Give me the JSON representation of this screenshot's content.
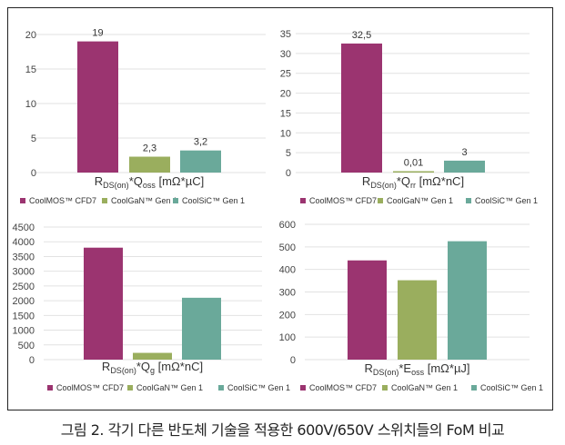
{
  "caption": "그림 2. 각기 다른 반도체 기술을 적용한 600V/650V 스위치들의 FoM 비교",
  "colors": {
    "CoolMOS™ CFD7": "#9b3470",
    "CoolGaN™ Gen 1": "#9aae5e",
    "CoolSiC™ Gen 1": "#6aa99a"
  },
  "chart_data": [
    {
      "type": "bar",
      "title": {
        "r": "R",
        "sub1": "DS(on)",
        "q": "*Q",
        "sub2": "oss",
        "unit": " [mΩ*µC]"
      },
      "categories": [
        "CoolMOS™ CFD7",
        "CoolGaN™ Gen 1",
        "CoolSiC™ Gen 1"
      ],
      "values": [
        19,
        2.3,
        3.2
      ],
      "data_labels": [
        "19",
        "2,3",
        "3,2"
      ],
      "ylim": [
        0,
        20
      ],
      "yticks": [
        "0",
        "5",
        "10",
        "15",
        "20"
      ],
      "grid": true,
      "legend": "bottom"
    },
    {
      "type": "bar",
      "title": {
        "r": "R",
        "sub1": "DS(on)",
        "q": "*Q",
        "sub2": "rr",
        "unit": " [mΩ*nC]"
      },
      "categories": [
        "CoolMOS™ CFD7",
        "CoolGaN™ Gen 1",
        "CoolSiC™ Gen 1"
      ],
      "values": [
        32.5,
        0.01,
        3
      ],
      "data_labels": [
        "32,5",
        "0,01",
        "3"
      ],
      "ylim": [
        0,
        35
      ],
      "yticks": [
        "0",
        "5",
        "10",
        "15",
        "20",
        "25",
        "30",
        "35"
      ],
      "grid": true,
      "legend": "bottom"
    },
    {
      "type": "bar",
      "title": {
        "r": "R",
        "sub1": "DS(on)",
        "q": "*Q",
        "sub2": "g",
        "unit": " [mΩ*nC]"
      },
      "categories": [
        "CoolMOS™ CFD7",
        "CoolGaN™ Gen 1",
        "CoolSiC™ Gen 1"
      ],
      "values": [
        3800,
        230,
        2100
      ],
      "data_labels": [],
      "ylim": [
        0,
        4500
      ],
      "yticks": [
        "0",
        "500",
        "1000",
        "1500",
        "2000",
        "2500",
        "3000",
        "3500",
        "4000",
        "4500"
      ],
      "grid": true,
      "legend": "bottom"
    },
    {
      "type": "bar",
      "title": {
        "r": "R",
        "sub1": "DS(on)",
        "q": "*E",
        "sub2": "oss",
        "unit": " [mΩ*µJ]"
      },
      "categories": [
        "CoolMOS™ CFD7",
        "CoolGaN™ Gen 1",
        "CoolSiC™ Gen 1"
      ],
      "values": [
        440,
        352,
        525
      ],
      "data_labels": [],
      "ylim": [
        0,
        600
      ],
      "yticks": [
        "0",
        "100",
        "200",
        "300",
        "400",
        "500",
        "600"
      ],
      "grid": true,
      "legend": "bottom"
    }
  ]
}
